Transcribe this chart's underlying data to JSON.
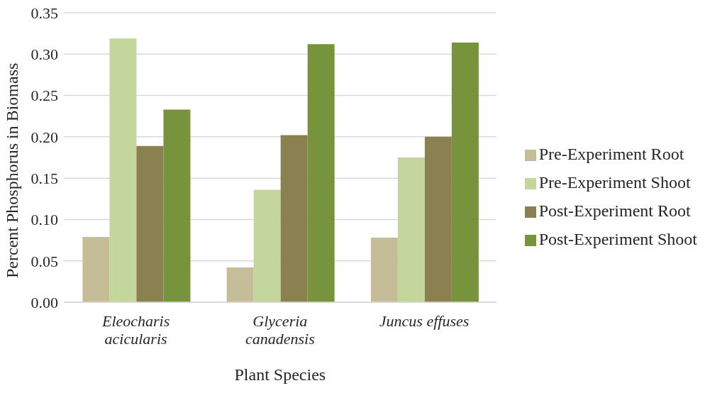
{
  "chart_data": {
    "type": "bar",
    "xlabel": "Plant Species",
    "ylabel": "Percent Phosphorus in Biomass",
    "categories": [
      "Eleocharis acicularis",
      "Glyceria canadensis",
      "Juncus effuses"
    ],
    "series": [
      {
        "name": "Pre-Experiment Root",
        "color": "#c4bd97",
        "values": [
          0.079,
          0.042,
          0.078
        ]
      },
      {
        "name": "Pre-Experiment Shoot",
        "color": "#c3d69b",
        "values": [
          0.319,
          0.136,
          0.175
        ]
      },
      {
        "name": "Post-Experiment Root",
        "color": "#8b8050",
        "values": [
          0.189,
          0.202,
          0.2
        ]
      },
      {
        "name": "Post-Experiment Shoot",
        "color": "#77933c",
        "values": [
          0.233,
          0.312,
          0.314
        ]
      }
    ],
    "ylim": [
      0,
      0.35
    ],
    "yticks": [
      {
        "value": 0,
        "label": "0.00"
      },
      {
        "value": 0.05,
        "label": "0.05"
      },
      {
        "value": 0.1,
        "label": "0.10"
      },
      {
        "value": 0.15,
        "label": "0.15"
      },
      {
        "value": 0.2,
        "label": "0.20"
      },
      {
        "value": 0.25,
        "label": "0.25"
      },
      {
        "value": 0.3,
        "label": "0.30"
      },
      {
        "value": 0.35,
        "label": "0.35"
      }
    ],
    "grid": "y",
    "legend": "right"
  }
}
